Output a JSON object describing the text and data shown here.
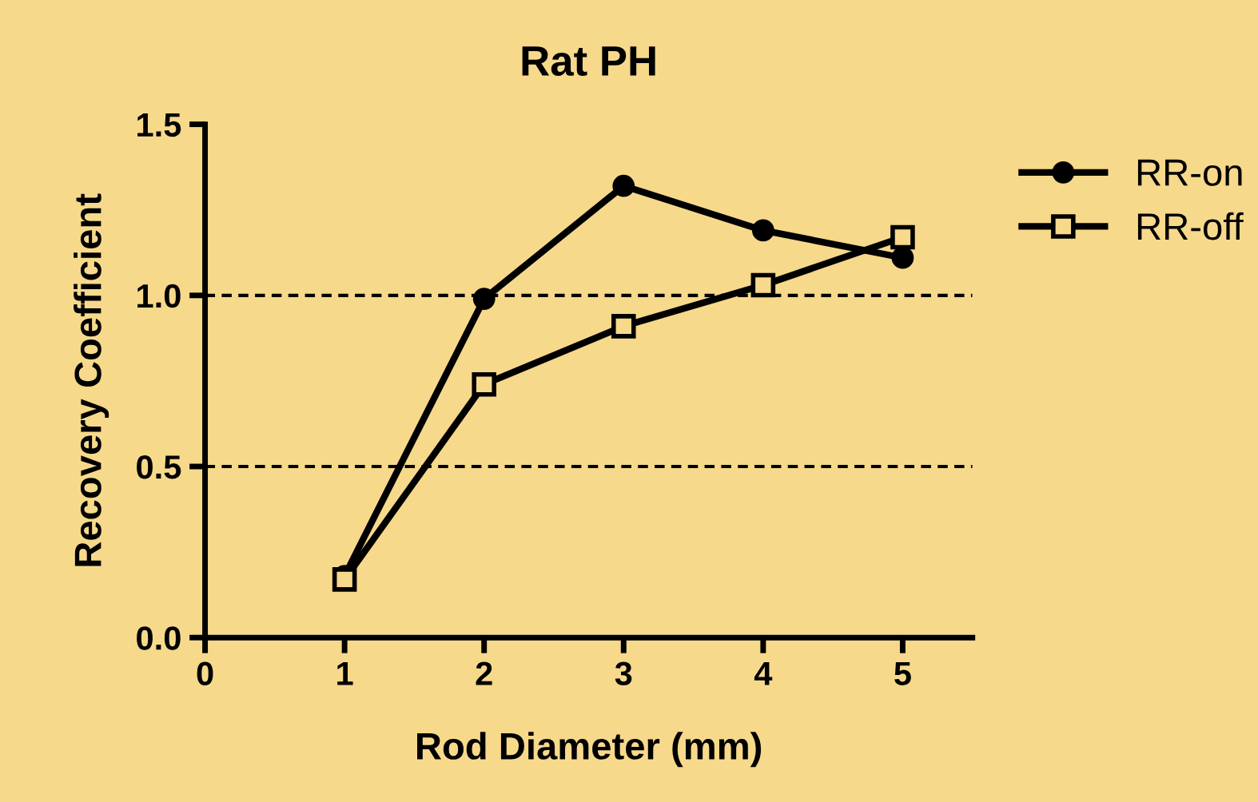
{
  "chart_data": {
    "type": "line",
    "title": "Rat PH",
    "xlabel": "Rod Diameter (mm)",
    "ylabel": "Recovery Coefficient",
    "x": [
      1,
      2,
      3,
      4,
      5
    ],
    "series": [
      {
        "name": "RR-on",
        "color": "#000000",
        "marker": "circle",
        "values": [
          0.18,
          0.99,
          1.32,
          1.19,
          1.11
        ]
      },
      {
        "name": "RR-off",
        "color": "#000000",
        "marker": "square",
        "values": [
          0.17,
          0.74,
          0.91,
          1.03,
          1.17
        ]
      }
    ],
    "xlim": [
      0,
      5.5
    ],
    "xticks": [
      0,
      1,
      2,
      3,
      4,
      5
    ],
    "ylim": [
      0,
      1.5
    ],
    "yticks": [
      {
        "value": 0,
        "label": "0.0"
      },
      {
        "value": 0.5,
        "label": "0.5"
      },
      {
        "value": 1,
        "label": "1.0"
      },
      {
        "value": 1.5,
        "label": "1.5"
      }
    ],
    "ref_lines": [
      {
        "axis": "y",
        "value": 1.0,
        "color": "#000000",
        "line_style": "dashed"
      },
      {
        "axis": "y",
        "value": 0.5,
        "color": "#000000",
        "line_style": "dashed"
      }
    ],
    "legend": "top right",
    "grid": false,
    "line_style": "solid"
  }
}
